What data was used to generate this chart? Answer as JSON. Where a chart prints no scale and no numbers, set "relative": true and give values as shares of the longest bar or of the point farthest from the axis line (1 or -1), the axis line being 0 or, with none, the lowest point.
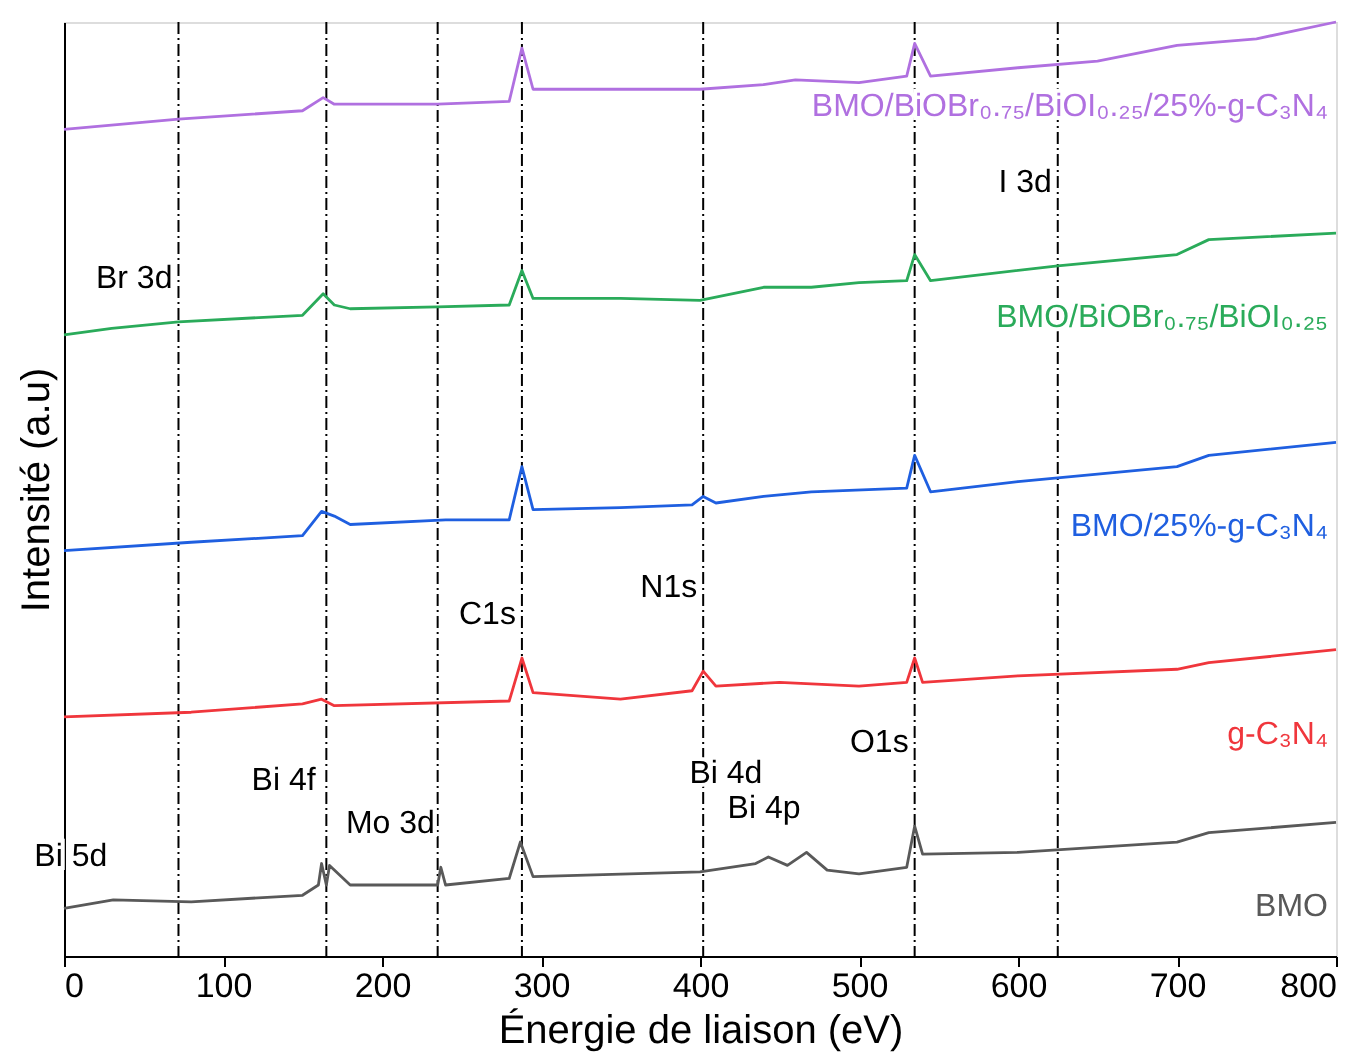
{
  "chart_data": {
    "type": "line",
    "relative": true,
    "xlabel": "Énergie de liaison (eV)",
    "ylabel": "Intensité (a.u)",
    "xlim": [
      0,
      800
    ],
    "xticks": [
      0,
      100,
      200,
      300,
      400,
      500,
      600,
      700,
      800
    ],
    "grid": false,
    "legend": false,
    "marker": "none",
    "line_style": "solid",
    "series": [
      {
        "name": "BMO",
        "color": "#595959",
        "x": [
          0,
          31,
          80,
          150,
          160,
          162,
          165,
          167,
          180,
          235,
          237,
          240,
          280,
          287,
          295,
          400,
          435,
          443,
          455,
          467,
          480,
          500,
          530,
          535,
          540,
          600,
          700,
          720,
          800
        ],
        "values": [
          0.051,
          0.06,
          0.058,
          0.065,
          0.076,
          0.099,
          0.076,
          0.097,
          0.076,
          0.076,
          0.095,
          0.076,
          0.083,
          0.122,
          0.085,
          0.09,
          0.099,
          0.106,
          0.097,
          0.111,
          0.092,
          0.088,
          0.095,
          0.139,
          0.109,
          0.111,
          0.122,
          0.132,
          0.143
        ]
      },
      {
        "name": "g-C₃N₄",
        "color": "#f0363c",
        "x": [
          0,
          80,
          150,
          162,
          170,
          280,
          288,
          295,
          350,
          395,
          402,
          410,
          450,
          500,
          530,
          535,
          540,
          600,
          700,
          720,
          800
        ],
        "values": [
          0.256,
          0.261,
          0.27,
          0.275,
          0.268,
          0.273,
          0.319,
          0.282,
          0.275,
          0.284,
          0.305,
          0.289,
          0.293,
          0.289,
          0.293,
          0.319,
          0.293,
          0.3,
          0.307,
          0.314,
          0.328
        ]
      },
      {
        "name": "BMO/25%-g-C₃N₄",
        "color": "#1f5fe0",
        "x": [
          0,
          80,
          150,
          162,
          170,
          180,
          240,
          280,
          288,
          295,
          350,
          395,
          402,
          410,
          440,
          470,
          530,
          535,
          545,
          600,
          700,
          720,
          800
        ],
        "values": [
          0.434,
          0.443,
          0.45,
          0.476,
          0.471,
          0.462,
          0.467,
          0.467,
          0.524,
          0.478,
          0.48,
          0.483,
          0.492,
          0.485,
          0.492,
          0.497,
          0.501,
          0.536,
          0.497,
          0.508,
          0.524,
          0.536,
          0.55
        ]
      },
      {
        "name": "BMO/BiOBr₀.₇₅/BiOI₀.₂₅",
        "color": "#2aab5a",
        "x": [
          0,
          30,
          72,
          150,
          163,
          170,
          180,
          235,
          280,
          288,
          295,
          350,
          400,
          440,
          470,
          500,
          530,
          535,
          545,
          625,
          700,
          720,
          800
        ],
        "values": [
          0.665,
          0.672,
          0.679,
          0.686,
          0.709,
          0.697,
          0.693,
          0.695,
          0.697,
          0.734,
          0.704,
          0.704,
          0.702,
          0.716,
          0.716,
          0.721,
          0.723,
          0.751,
          0.723,
          0.739,
          0.751,
          0.767,
          0.774
        ]
      },
      {
        "name": "BMO/BiOBr₀.₇₅/BiOI₀.₂₅/25%-g-C₃N₄",
        "color": "#b070e0",
        "x": [
          0,
          72,
          150,
          163,
          170,
          235,
          280,
          288,
          295,
          400,
          440,
          460,
          500,
          530,
          535,
          545,
          600,
          650,
          700,
          750,
          800
        ],
        "values": [
          0.885,
          0.896,
          0.905,
          0.919,
          0.912,
          0.912,
          0.915,
          0.972,
          0.928,
          0.928,
          0.933,
          0.938,
          0.935,
          0.942,
          0.977,
          0.942,
          0.951,
          0.958,
          0.975,
          0.982,
          1.0
        ]
      }
    ],
    "ref_lines": [
      {
        "axis": "x",
        "value": 72,
        "color": "#000000",
        "line_style": "dashed"
      },
      {
        "axis": "x",
        "value": 165,
        "color": "#000000",
        "line_style": "dashed"
      },
      {
        "axis": "x",
        "value": 235,
        "color": "#000000",
        "line_style": "dashed"
      },
      {
        "axis": "x",
        "value": 288,
        "color": "#000000",
        "line_style": "dashed"
      },
      {
        "axis": "x",
        "value": 402,
        "color": "#000000",
        "line_style": "dashed"
      },
      {
        "axis": "x",
        "value": 535,
        "color": "#000000",
        "line_style": "dashed"
      },
      {
        "axis": "x",
        "value": 625,
        "color": "#000000",
        "line_style": "dashed"
      }
    ],
    "annotations": [
      {
        "text": "Bi 5d",
        "x": 31,
        "y": 0.06
      },
      {
        "text": "Bi 4f",
        "x": 162,
        "y": 0.099
      },
      {
        "text": "Mo 3d",
        "x": 237,
        "y": 0.095
      },
      {
        "text": "Bi 4d",
        "x": 443,
        "y": 0.106
      },
      {
        "text": "Bi 4p",
        "x": 467,
        "y": 0.111
      },
      {
        "text": "O1s",
        "x": 535,
        "y": 0.139
      },
      {
        "text": "C1s",
        "x": 288,
        "y": 0.319
      },
      {
        "text": "N1s",
        "x": 402,
        "y": 0.305
      },
      {
        "text": "Br 3d",
        "x": 72,
        "y": 0.679
      },
      {
        "text": "I 3d",
        "x": 625,
        "y": 0.739
      }
    ]
  }
}
